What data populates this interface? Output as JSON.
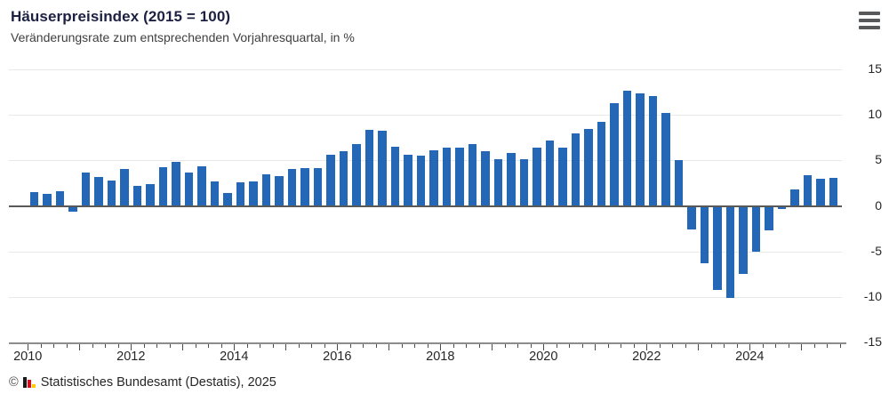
{
  "header": {
    "menu_icon": "hamburger-icon"
  },
  "footer": {
    "copyright": "©",
    "logo_icon": "destatis-logo-icon",
    "source": "Statistisches Bundesamt (Destatis), 2025"
  },
  "chart_data": {
    "type": "bar",
    "title": "Häuserpreisindex (2015 = 100)",
    "subtitle": "Veränderungsrate zum entsprechenden Vorjahresquartal, in %",
    "unit": "%",
    "start_year": 2010,
    "start_quarter": 1,
    "categories": [
      "2010-Q1",
      "2010-Q2",
      "2010-Q3",
      "2010-Q4",
      "2011-Q1",
      "2011-Q2",
      "2011-Q3",
      "2011-Q4",
      "2012-Q1",
      "2012-Q2",
      "2012-Q3",
      "2012-Q4",
      "2013-Q1",
      "2013-Q2",
      "2013-Q3",
      "2013-Q4",
      "2014-Q1",
      "2014-Q2",
      "2014-Q3",
      "2014-Q4",
      "2015-Q1",
      "2015-Q2",
      "2015-Q3",
      "2015-Q4",
      "2016-Q1",
      "2016-Q2",
      "2016-Q3",
      "2016-Q4",
      "2017-Q1",
      "2017-Q2",
      "2017-Q3",
      "2017-Q4",
      "2018-Q1",
      "2018-Q2",
      "2018-Q3",
      "2018-Q4",
      "2019-Q1",
      "2019-Q2",
      "2019-Q3",
      "2019-Q4",
      "2020-Q1",
      "2020-Q2",
      "2020-Q3",
      "2020-Q4",
      "2021-Q1",
      "2021-Q2",
      "2021-Q3",
      "2021-Q4",
      "2022-Q1",
      "2022-Q2",
      "2022-Q3",
      "2022-Q4",
      "2023-Q1",
      "2023-Q2",
      "2023-Q3",
      "2023-Q4",
      "2024-Q1",
      "2024-Q2",
      "2024-Q3",
      "2024-Q4",
      "2025-Q1",
      "2025-Q2",
      "2025-Q3"
    ],
    "values": [
      1.5,
      1.3,
      1.6,
      -0.6,
      3.7,
      3.2,
      2.8,
      4.1,
      2.2,
      2.4,
      4.3,
      4.8,
      3.7,
      4.4,
      2.7,
      1.4,
      2.6,
      2.7,
      3.5,
      3.3,
      4.1,
      4.2,
      4.2,
      5.6,
      6.0,
      6.8,
      8.4,
      8.3,
      6.5,
      5.6,
      5.5,
      6.1,
      6.4,
      6.4,
      6.8,
      6.0,
      5.1,
      5.8,
      5.1,
      6.4,
      7.2,
      6.4,
      8.0,
      8.5,
      9.2,
      11.3,
      12.7,
      12.4,
      12.1,
      10.2,
      5.0,
      -2.6,
      -6.3,
      -9.2,
      -10.1,
      -7.5,
      -5.0,
      -2.7,
      -0.3,
      1.8,
      3.4,
      3.0,
      3.1
    ],
    "ylim": [
      -15,
      15
    ],
    "yticks": [
      15,
      10,
      5,
      0,
      -5,
      -10,
      -15
    ],
    "xtick_year_labels": [
      "2010",
      "2012",
      "2014",
      "2016",
      "2018",
      "2020",
      "2022",
      "2024"
    ],
    "grid": true,
    "legend": false,
    "bar_color": "#2467b7",
    "zero_line_color": "#595959",
    "grid_color": "#e8e8e8"
  }
}
